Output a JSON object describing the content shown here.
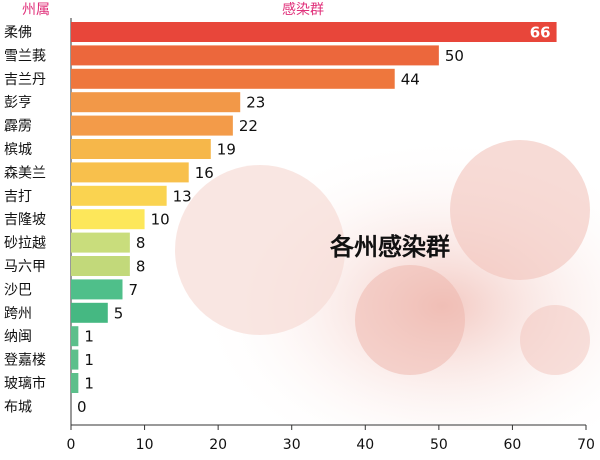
{
  "chart_data": {
    "type": "bar",
    "orientation": "horizontal",
    "title": "各州感染群",
    "y_label": "州属",
    "x_label": "感染群",
    "categories": [
      "柔佛",
      "雪兰莪",
      "吉兰丹",
      "彭亨",
      "霹雳",
      "槟城",
      "森美兰",
      "吉打",
      "吉隆坡",
      "砂拉越",
      "马六甲",
      "沙巴",
      "跨州",
      "纳闽",
      "登嘉楼",
      "玻璃市",
      "布城"
    ],
    "values": [
      66,
      50,
      44,
      23,
      22,
      19,
      16,
      13,
      10,
      8,
      8,
      7,
      5,
      1,
      1,
      1,
      0
    ],
    "colors": [
      "#e8463a",
      "#ec673c",
      "#ee773d",
      "#f29848",
      "#f39b49",
      "#f6b74a",
      "#f8c04c",
      "#fad350",
      "#fde75a",
      "#c9dd7c",
      "#c2d97a",
      "#4fbf8a",
      "#45b882",
      "#5cbf8b",
      "#5cbf8b",
      "#5cbf8b",
      "#5cbf8b"
    ],
    "xlim": [
      0,
      70
    ],
    "xticks": [
      0,
      10,
      20,
      30,
      40,
      50,
      60,
      70
    ]
  }
}
